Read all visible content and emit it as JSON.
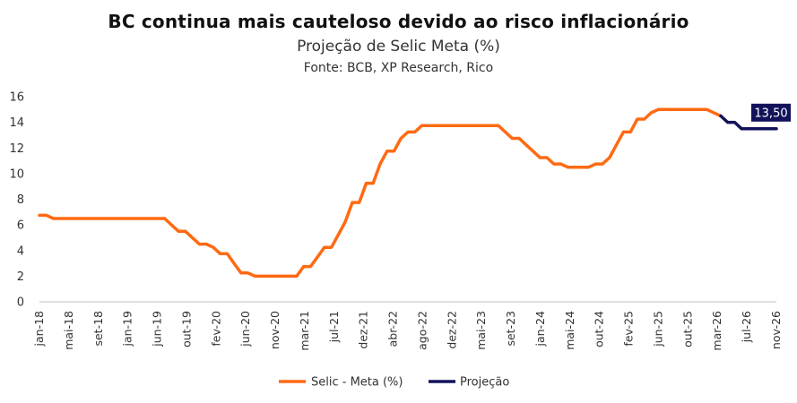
{
  "header": {
    "title": "BC continua mais cauteloso devido ao risco inflacionário",
    "subtitle": "Projeção de Selic Meta (%)",
    "source": "Fonte: BCB,  XP Research, Rico"
  },
  "colors": {
    "selic": "#FF6A13",
    "projecao": "#12125A",
    "axis": "#bdbdbd"
  },
  "chart_data": {
    "type": "line",
    "x_tick_labels": [
      "jan-18",
      "mai-18",
      "set-18",
      "jan-19",
      "jun-19",
      "out-19",
      "fev-20",
      "jun-20",
      "nov-20",
      "mar-21",
      "jul-21",
      "dez-21",
      "abr-22",
      "ago-22",
      "dez-22",
      "mai-23",
      "set-23",
      "jan-24",
      "mai-24",
      "out-24",
      "fev-25",
      "jun-25",
      "out-25",
      "mar-26",
      "jul-26",
      "nov-26"
    ],
    "x_range": [
      "2018-01",
      "2026-11"
    ],
    "y_ticks": [
      "0",
      "2",
      "4",
      "6",
      "8",
      "10",
      "12",
      "14",
      "16"
    ],
    "ylim": [
      0,
      16
    ],
    "grid": false,
    "legend_position": "bottom",
    "series": [
      {
        "name": "Selic - Meta (%)",
        "points": [
          [
            "2018-01",
            6.75
          ],
          [
            "2018-02",
            6.75
          ],
          [
            "2018-03",
            6.5
          ],
          [
            "2018-04",
            6.5
          ],
          [
            "2018-05",
            6.5
          ],
          [
            "2018-06",
            6.5
          ],
          [
            "2018-07",
            6.5
          ],
          [
            "2018-08",
            6.5
          ],
          [
            "2018-09",
            6.5
          ],
          [
            "2018-10",
            6.5
          ],
          [
            "2018-11",
            6.5
          ],
          [
            "2018-12",
            6.5
          ],
          [
            "2019-01",
            6.5
          ],
          [
            "2019-02",
            6.5
          ],
          [
            "2019-03",
            6.5
          ],
          [
            "2019-04",
            6.5
          ],
          [
            "2019-05",
            6.5
          ],
          [
            "2019-06",
            6.5
          ],
          [
            "2019-07",
            6.5
          ],
          [
            "2019-08",
            6.0
          ],
          [
            "2019-09",
            5.5
          ],
          [
            "2019-10",
            5.5
          ],
          [
            "2019-11",
            5.0
          ],
          [
            "2019-12",
            4.5
          ],
          [
            "2020-01",
            4.5
          ],
          [
            "2020-02",
            4.25
          ],
          [
            "2020-03",
            3.75
          ],
          [
            "2020-04",
            3.75
          ],
          [
            "2020-05",
            3.0
          ],
          [
            "2020-06",
            2.25
          ],
          [
            "2020-07",
            2.25
          ],
          [
            "2020-08",
            2.0
          ],
          [
            "2020-09",
            2.0
          ],
          [
            "2020-10",
            2.0
          ],
          [
            "2020-11",
            2.0
          ],
          [
            "2020-12",
            2.0
          ],
          [
            "2021-01",
            2.0
          ],
          [
            "2021-02",
            2.0
          ],
          [
            "2021-03",
            2.75
          ],
          [
            "2021-04",
            2.75
          ],
          [
            "2021-05",
            3.5
          ],
          [
            "2021-06",
            4.25
          ],
          [
            "2021-07",
            4.25
          ],
          [
            "2021-08",
            5.25
          ],
          [
            "2021-09",
            6.25
          ],
          [
            "2021-10",
            7.75
          ],
          [
            "2021-11",
            7.75
          ],
          [
            "2021-12",
            9.25
          ],
          [
            "2022-01",
            9.25
          ],
          [
            "2022-02",
            10.75
          ],
          [
            "2022-03",
            11.75
          ],
          [
            "2022-04",
            11.75
          ],
          [
            "2022-05",
            12.75
          ],
          [
            "2022-06",
            13.25
          ],
          [
            "2022-07",
            13.25
          ],
          [
            "2022-08",
            13.75
          ],
          [
            "2022-09",
            13.75
          ],
          [
            "2022-10",
            13.75
          ],
          [
            "2022-11",
            13.75
          ],
          [
            "2022-12",
            13.75
          ],
          [
            "2023-01",
            13.75
          ],
          [
            "2023-02",
            13.75
          ],
          [
            "2023-03",
            13.75
          ],
          [
            "2023-04",
            13.75
          ],
          [
            "2023-05",
            13.75
          ],
          [
            "2023-06",
            13.75
          ],
          [
            "2023-07",
            13.75
          ],
          [
            "2023-08",
            13.25
          ],
          [
            "2023-09",
            12.75
          ],
          [
            "2023-10",
            12.75
          ],
          [
            "2023-11",
            12.25
          ],
          [
            "2023-12",
            11.75
          ],
          [
            "2024-01",
            11.25
          ],
          [
            "2024-02",
            11.25
          ],
          [
            "2024-03",
            10.75
          ],
          [
            "2024-04",
            10.75
          ],
          [
            "2024-05",
            10.5
          ],
          [
            "2024-06",
            10.5
          ],
          [
            "2024-07",
            10.5
          ],
          [
            "2024-08",
            10.5
          ],
          [
            "2024-09",
            10.75
          ],
          [
            "2024-10",
            10.75
          ],
          [
            "2024-11",
            11.25
          ],
          [
            "2024-12",
            12.25
          ],
          [
            "2025-01",
            13.25
          ],
          [
            "2025-02",
            13.25
          ],
          [
            "2025-03",
            14.25
          ],
          [
            "2025-04",
            14.25
          ],
          [
            "2025-05",
            14.75
          ],
          [
            "2025-06",
            15.0
          ],
          [
            "2025-07",
            15.0
          ],
          [
            "2025-08",
            15.0
          ],
          [
            "2025-09",
            15.0
          ],
          [
            "2025-10",
            15.0
          ],
          [
            "2025-11",
            15.0
          ],
          [
            "2025-12",
            15.0
          ],
          [
            "2026-01",
            15.0
          ],
          [
            "2026-02",
            14.75
          ],
          [
            "2026-03",
            14.5
          ]
        ]
      },
      {
        "name": "Projeção",
        "points": [
          [
            "2026-03",
            14.5
          ],
          [
            "2026-04",
            14.0
          ],
          [
            "2026-05",
            14.0
          ],
          [
            "2026-06",
            13.5
          ],
          [
            "2026-07",
            13.5
          ],
          [
            "2026-08",
            13.5
          ],
          [
            "2026-09",
            13.5
          ],
          [
            "2026-10",
            13.5
          ],
          [
            "2026-11",
            13.5
          ]
        ]
      }
    ],
    "annotation": {
      "text": "13,50",
      "x": "2026-11",
      "y": 13.5
    }
  }
}
